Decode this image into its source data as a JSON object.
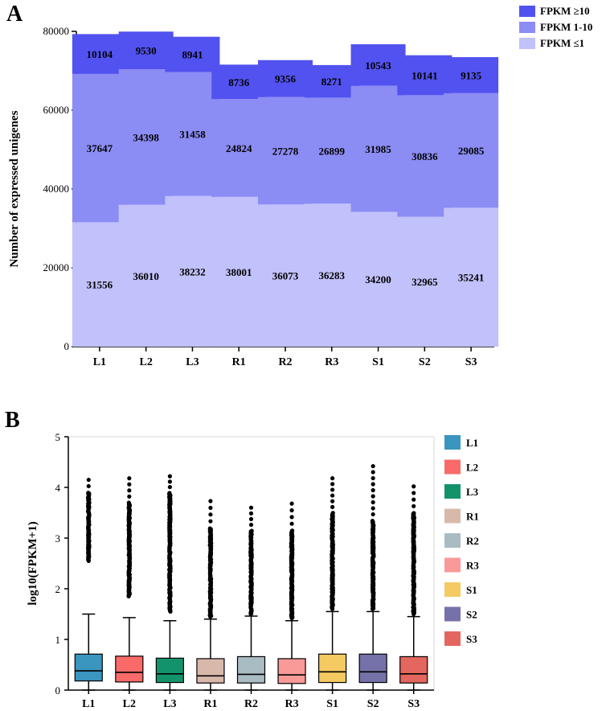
{
  "panel_a_letter": "A",
  "panel_b_letter": "B",
  "chart_data": [
    {
      "type": "bar",
      "stacked": true,
      "ylabel": "Number of expressed unigenes",
      "ylim": [
        0,
        80000
      ],
      "yticks": [
        "0",
        "20000",
        "40000",
        "60000",
        "80000"
      ],
      "ytick_values": [
        0,
        20000,
        40000,
        60000,
        80000
      ],
      "categories": [
        "L1",
        "L2",
        "L3",
        "R1",
        "R2",
        "R3",
        "S1",
        "S2",
        "S3"
      ],
      "legend_position": "top-right",
      "series": [
        {
          "name": "FPKM ≤1",
          "color": "#c1c1fb",
          "values": [
            31556,
            36010,
            38232,
            38001,
            36073,
            36283,
            34200,
            32965,
            35241
          ],
          "labels": [
            "31556",
            "36010",
            "38232",
            "38001",
            "36073",
            "36283",
            "34200",
            "32965",
            "35241"
          ]
        },
        {
          "name": "FPKM 1-10",
          "color": "#8c8cf5",
          "values": [
            37647,
            34398,
            31458,
            24824,
            27278,
            26899,
            31985,
            30836,
            29085
          ],
          "labels": [
            "37647",
            "34398",
            "31458",
            "24824",
            "27278",
            "26899",
            "31985",
            "30836",
            "29085"
          ]
        },
        {
          "name": "FPKM ≥10",
          "color": "#5252f0",
          "values": [
            10104,
            9530,
            8941,
            8736,
            9356,
            8271,
            10543,
            10141,
            9135
          ],
          "labels": [
            "10104",
            "9530",
            "8941",
            "8736",
            "9356",
            "8271",
            "10543",
            "10141",
            "9135"
          ]
        }
      ],
      "legend": [
        {
          "label": "FPKM ≥10",
          "color": "#5252f0"
        },
        {
          "label": "FPKM 1-10",
          "color": "#8c8cf5"
        },
        {
          "label": "FPKM ≤1",
          "color": "#c1c1fb"
        }
      ]
    },
    {
      "type": "boxplot",
      "ylabel": "log10(FPKM+1)",
      "ylim": [
        0,
        5
      ],
      "yticks": [
        "0",
        "1",
        "2",
        "3",
        "4",
        "5"
      ],
      "ytick_values": [
        0,
        1,
        2,
        3,
        4,
        5
      ],
      "categories": [
        "L1",
        "L2",
        "L3",
        "R1",
        "R2",
        "R3",
        "S1",
        "S2",
        "S3"
      ],
      "legend_position": "right",
      "boxes": [
        {
          "name": "L1",
          "color": "#3a95bf",
          "min": 0,
          "q1": 0.18,
          "median": 0.38,
          "q3": 0.71,
          "whisker_high": 1.5,
          "outliers_from": 2.55,
          "outliers_dense_to": 3.9,
          "max": 4.15
        },
        {
          "name": "L2",
          "color": "#f96a69",
          "min": 0,
          "q1": 0.16,
          "median": 0.35,
          "q3": 0.67,
          "whisker_high": 1.43,
          "outliers_from": 1.85,
          "outliers_dense_to": 3.7,
          "max": 4.18
        },
        {
          "name": "L3",
          "color": "#13936b",
          "min": 0,
          "q1": 0.15,
          "median": 0.32,
          "q3": 0.63,
          "whisker_high": 1.37,
          "outliers_from": 1.55,
          "outliers_dense_to": 3.9,
          "max": 4.22
        },
        {
          "name": "R1",
          "color": "#d9b8ac",
          "min": 0,
          "q1": 0.14,
          "median": 0.28,
          "q3": 0.62,
          "whisker_high": 1.4,
          "outliers_from": 1.45,
          "outliers_dense_to": 3.2,
          "max": 3.73
        },
        {
          "name": "R2",
          "color": "#a9bbc3",
          "min": 0,
          "q1": 0.14,
          "median": 0.31,
          "q3": 0.66,
          "whisker_high": 1.46,
          "outliers_from": 1.5,
          "outliers_dense_to": 3.15,
          "max": 3.6
        },
        {
          "name": "R3",
          "color": "#f99a98",
          "min": 0,
          "q1": 0.13,
          "median": 0.3,
          "q3": 0.62,
          "whisker_high": 1.37,
          "outliers_from": 1.42,
          "outliers_dense_to": 3.15,
          "max": 3.68
        },
        {
          "name": "S1",
          "color": "#f5ca62",
          "min": 0,
          "q1": 0.15,
          "median": 0.36,
          "q3": 0.71,
          "whisker_high": 1.55,
          "outliers_from": 1.6,
          "outliers_dense_to": 3.5,
          "max": 4.18
        },
        {
          "name": "S2",
          "color": "#7472a8",
          "min": 0,
          "q1": 0.15,
          "median": 0.36,
          "q3": 0.71,
          "whisker_high": 1.55,
          "outliers_from": 1.6,
          "outliers_dense_to": 3.35,
          "max": 4.42
        },
        {
          "name": "S3",
          "color": "#e3675e",
          "min": 0,
          "q1": 0.14,
          "median": 0.32,
          "q3": 0.66,
          "whisker_high": 1.45,
          "outliers_from": 1.5,
          "outliers_dense_to": 3.5,
          "max": 4.02
        }
      ],
      "legend": [
        {
          "label": "L1",
          "color": "#3a95bf"
        },
        {
          "label": "L2",
          "color": "#f96a69"
        },
        {
          "label": "L3",
          "color": "#13936b"
        },
        {
          "label": "R1",
          "color": "#d9b8ac"
        },
        {
          "label": "R2",
          "color": "#a9bbc3"
        },
        {
          "label": "R3",
          "color": "#f99a98"
        },
        {
          "label": "S1",
          "color": "#f5ca62"
        },
        {
          "label": "S2",
          "color": "#7472a8"
        },
        {
          "label": "S3",
          "color": "#e3675e"
        }
      ]
    }
  ]
}
